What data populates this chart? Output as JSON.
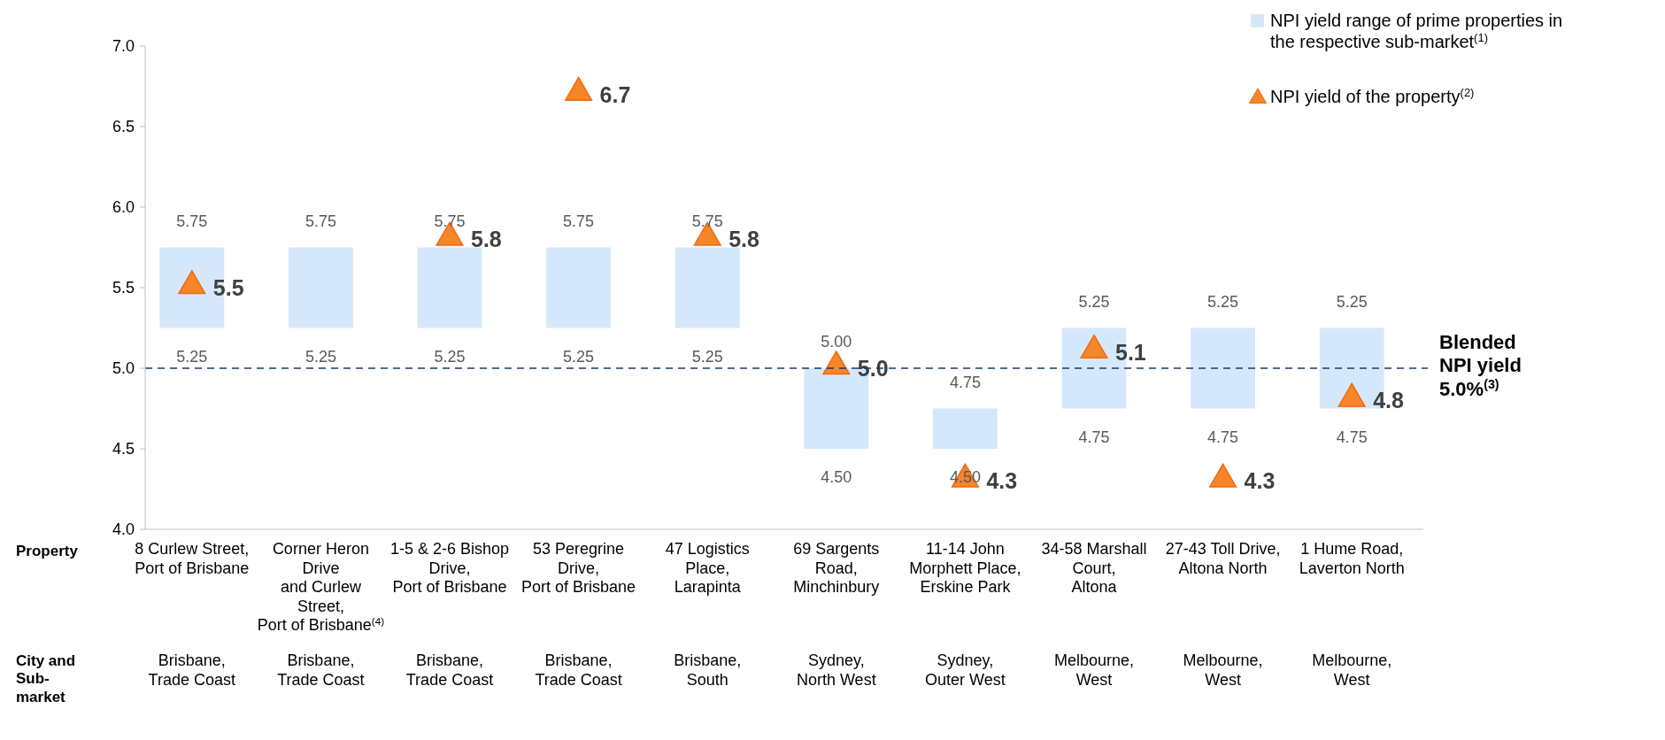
{
  "chart_data": {
    "type": "bar",
    "xlabel": "Property",
    "categories": [
      "8 Curlew Street,\nPort of Brisbane",
      "Corner Heron\nDrive\nand Curlew\nStreet,\nPort of Brisbane$^{(4)}$",
      "1-5 & 2-6 Bishop\nDrive,\nPort of Brisbane",
      "53 Peregrine\nDrive,\nPort of Brisbane",
      "47 Logistics\nPlace,\nLarapinta",
      "69 Sargents\nRoad,\nMinchinbury",
      "11-14 John\nMorphett Place,\nErskine Park",
      "34-58 Marshall\nCourt,\nAltona",
      "27-43 Toll Drive,\nAltona North",
      "1 Hume Road,\nLaverton North"
    ],
    "series": [
      {
        "name": "NPI yield range of prime properties in\nthe respective sub-market$^{(1)}$",
        "color": "#d5e8fb",
        "base": [
          5.25,
          5.25,
          5.25,
          5.25,
          5.25,
          4.5,
          4.5,
          4.75,
          4.75,
          4.75
        ],
        "values": [
          0.5,
          0.5,
          0.5,
          0.5,
          0.5,
          0.5,
          0.25,
          0.5,
          0.5,
          0.5
        ]
      },
      {
        "type": "scatter",
        "name": "NPI yield of the property$^{(2)}$",
        "color": "#f5862a",
        "marker": "triangle",
        "values": [
          5.5,
          null,
          5.8,
          6.7,
          5.8,
          5.0,
          4.3,
          5.1,
          4.3,
          4.8
        ],
        "value_labels": [
          "5.5",
          null,
          "5.8",
          "6.7",
          "5.8",
          "5.0",
          "4.3",
          "5.1",
          "4.3",
          "4.8"
        ]
      }
    ],
    "ylim": [
      4,
      7
    ],
    "yticks": [
      {
        "value": 4,
        "label": "4.0"
      },
      {
        "value": 4.5,
        "label": "4.5"
      },
      {
        "value": 5,
        "label": "5.0"
      },
      {
        "value": 5.5,
        "label": "5.5"
      },
      {
        "value": 6,
        "label": "6.0"
      },
      {
        "value": 6.5,
        "label": "6.5"
      },
      {
        "value": 7,
        "label": "7.0"
      }
    ],
    "ref_lines": [
      {
        "axis": "y",
        "value": 5.0,
        "label": "Blended\nNPI yield\n5.0%$^{(3)}$",
        "color": "#1f3864",
        "line_style": "dashed"
      }
    ],
    "legend": "top right",
    "annotations": [
      {
        "text": "5.75",
        "x": "8 Curlew Street,\nPort of Brisbane",
        "y": 5.75
      },
      {
        "text": "5.75",
        "x": "Corner Heron\nDrive\nand Curlew\nStreet,\nPort of Brisbane$^{(4)}$",
        "y": 5.75
      },
      {
        "text": "5.75",
        "x": "1-5 & 2-6 Bishop\nDrive,\nPort of Brisbane",
        "y": 5.75
      },
      {
        "text": "5.75",
        "x": "53 Peregrine\nDrive,\nPort of Brisbane",
        "y": 5.75
      },
      {
        "text": "5.75",
        "x": "47 Logistics\nPlace,\nLarapinta",
        "y": 5.75
      },
      {
        "text": "5.00",
        "x": "69 Sargents\nRoad,\nMinchinbury",
        "y": 5.0
      },
      {
        "text": "4.75",
        "x": "11-14 John\nMorphett Place,\nErskine Park",
        "y": 4.75
      },
      {
        "text": "5.25",
        "x": "34-58 Marshall\nCourt,\nAltona",
        "y": 5.25
      },
      {
        "text": "5.25",
        "x": "27-43 Toll Drive,\nAltona North",
        "y": 5.25
      },
      {
        "text": "5.25",
        "x": "1 Hume Road,\nLaverton North",
        "y": 5.25
      },
      {
        "text": "5.25",
        "x": "8 Curlew Street,\nPort of Brisbane",
        "y": 5.25
      },
      {
        "text": "5.25",
        "x": "Corner Heron\nDrive\nand Curlew\nStreet,\nPort of Brisbane$^{(4)}$",
        "y": 5.25
      },
      {
        "text": "5.25",
        "x": "1-5 & 2-6 Bishop\nDrive,\nPort of Brisbane",
        "y": 5.25
      },
      {
        "text": "5.25",
        "x": "53 Peregrine\nDrive,\nPort of Brisbane",
        "y": 5.25
      },
      {
        "text": "5.25",
        "x": "47 Logistics\nPlace,\nLarapinta",
        "y": 5.25
      },
      {
        "text": "4.50",
        "x": "69 Sargents\nRoad,\nMinchinbury",
        "y": 4.5
      },
      {
        "text": "4.50",
        "x": "11-14 John\nMorphett Place,\nErskine Park",
        "y": 4.5
      },
      {
        "text": "4.75",
        "x": "34-58 Marshall\nCourt,\nAltona",
        "y": 4.75
      },
      {
        "text": "4.75",
        "x": "27-43 Toll Drive,\nAltona North",
        "y": 4.75
      },
      {
        "text": "4.75",
        "x": "1 Hume Road,\nLaverton North",
        "y": 4.75
      },
      "City and\nSub-\nmarket",
      "Brisbane,\nTrade Coast",
      "Brisbane,\nTrade Coast",
      "Brisbane,\nTrade Coast",
      "Brisbane,\nTrade Coast",
      "Brisbane,\nSouth",
      "Sydney,\nNorth West",
      "Sydney,\nOuter West",
      "Melbourne,\nWest",
      "Melbourne,\nWest",
      "Melbourne,\nWest"
    ]
  }
}
